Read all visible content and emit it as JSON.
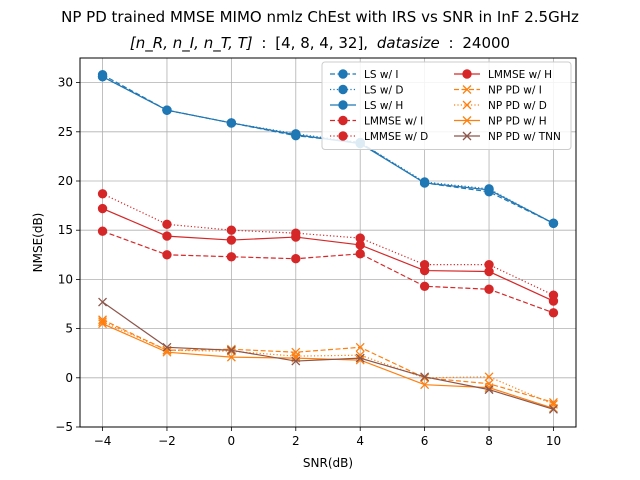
{
  "chart_data": {
    "type": "line",
    "title": "NP PD trained MMSE MIMO nmlz ChEst with IRS vs SNR in InF 2.5GHz",
    "subtitle": "[n_R, n_I, n_T, T] : [4, 8, 4, 32], datasize : 24000",
    "subtitle_parts": {
      "vars": "[n_R, n_I, n_T, T]",
      "colon1": ":",
      "values": "[4, 8, 4, 32],",
      "word": "datasize",
      "colon2": ":",
      "size": "24000"
    },
    "xlabel": "SNR(dB)",
    "ylabel": "NMSE(dB)",
    "xlim": [
      -4.7,
      10.7
    ],
    "ylim": [
      -5,
      32.5
    ],
    "xticks": [
      -4,
      -2,
      0,
      2,
      4,
      6,
      8,
      10
    ],
    "yticks": [
      -5,
      0,
      5,
      10,
      15,
      20,
      25,
      30
    ],
    "grid": true,
    "legend_position": "top-right",
    "legend_columns": 2,
    "x": [
      -4,
      -2,
      0,
      2,
      4,
      6,
      8,
      10
    ],
    "series": [
      {
        "name": "LS w/ I",
        "color": "#1f77b4",
        "linestyle": "dashed",
        "marker": "circle",
        "values": [
          30.8,
          27.2,
          25.9,
          24.6,
          23.9,
          19.8,
          18.9,
          15.7
        ]
      },
      {
        "name": "LS w/ D",
        "color": "#1f77b4",
        "linestyle": "dotted",
        "marker": "circle",
        "values": [
          30.6,
          27.2,
          25.9,
          24.8,
          23.9,
          19.9,
          19.2,
          15.7
        ]
      },
      {
        "name": "LS w/ H",
        "color": "#1f77b4",
        "linestyle": "solid",
        "marker": "circle",
        "values": [
          30.6,
          27.2,
          25.9,
          24.7,
          23.8,
          19.8,
          19.1,
          15.7
        ]
      },
      {
        "name": "LMMSE w/ I",
        "color": "#d62728",
        "linestyle": "dashed",
        "marker": "circle",
        "values": [
          14.9,
          12.5,
          12.3,
          12.1,
          12.6,
          9.3,
          9.0,
          6.6
        ]
      },
      {
        "name": "LMMSE w/ D",
        "color": "#d62728",
        "linestyle": "dotted",
        "marker": "circle",
        "values": [
          18.7,
          15.6,
          15.0,
          14.7,
          14.2,
          11.5,
          11.5,
          8.4
        ]
      },
      {
        "name": "LMMSE w/ H",
        "color": "#d62728",
        "linestyle": "solid",
        "marker": "circle",
        "values": [
          17.2,
          14.4,
          14.0,
          14.3,
          13.5,
          10.9,
          10.8,
          7.8
        ]
      },
      {
        "name": "NP PD w/ I",
        "color": "#ff7f0e",
        "linestyle": "dashed",
        "marker": "x",
        "values": [
          5.9,
          2.8,
          2.9,
          2.6,
          3.1,
          0.0,
          -0.6,
          -2.5
        ]
      },
      {
        "name": "NP PD w/ D",
        "color": "#ff7f0e",
        "linestyle": "dotted",
        "marker": "x",
        "values": [
          5.7,
          2.8,
          2.7,
          2.2,
          2.3,
          0.0,
          0.1,
          -2.7
        ]
      },
      {
        "name": "NP PD w/ H",
        "color": "#ff7f0e",
        "linestyle": "solid",
        "marker": "x",
        "values": [
          5.5,
          2.6,
          2.1,
          2.0,
          1.8,
          -0.7,
          -1.0,
          -3.1
        ]
      },
      {
        "name": "NP PD w/ TNN",
        "color": "#8c564b",
        "linestyle": "solid",
        "marker": "x",
        "values": [
          7.7,
          3.1,
          2.8,
          1.7,
          2.0,
          0.1,
          -1.2,
          -3.2
        ]
      }
    ]
  }
}
